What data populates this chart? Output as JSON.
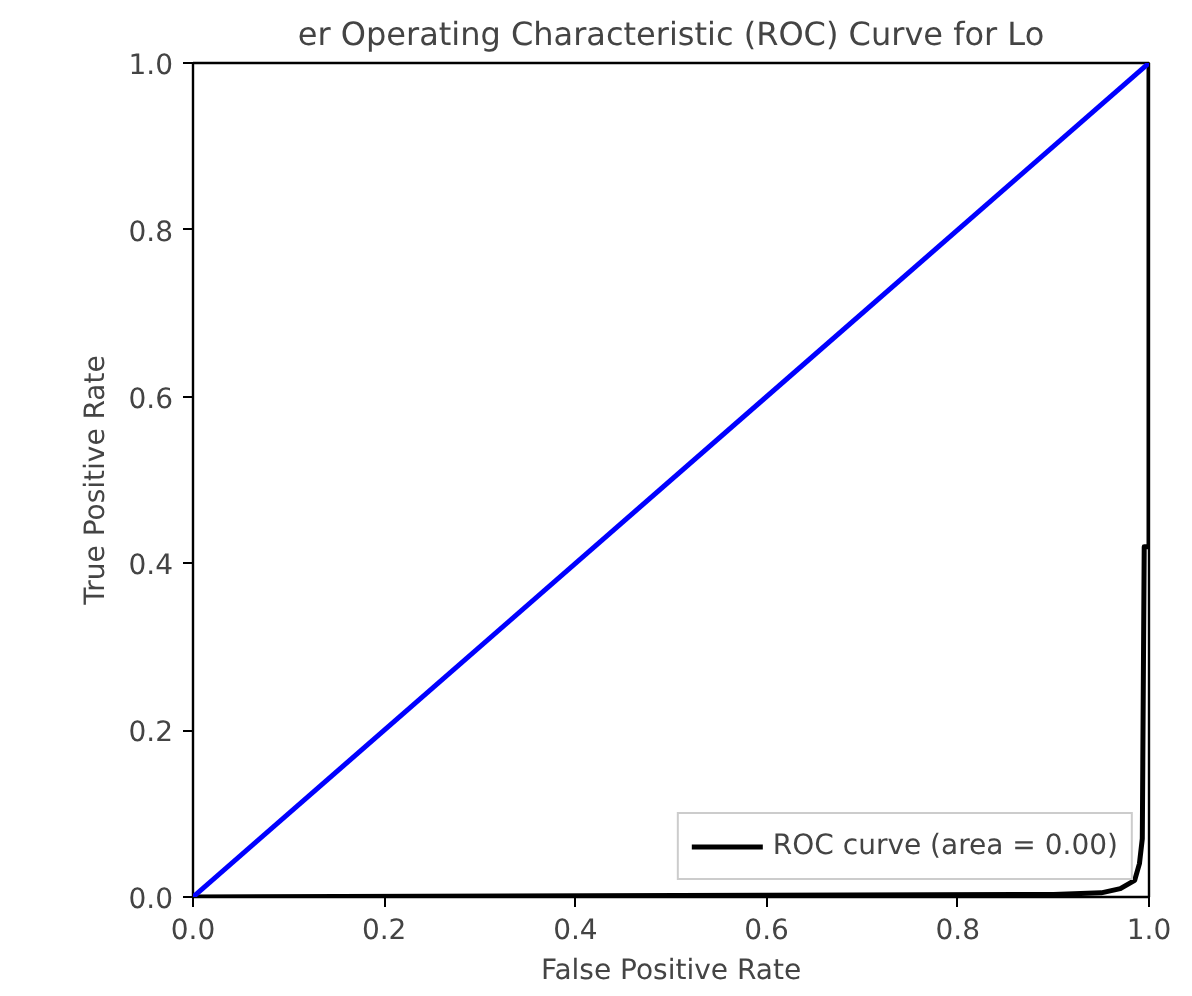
{
  "chart_data": {
    "type": "line",
    "title": "er Operating Characteristic (ROC) Curve for Lo",
    "xlabel": "False Positive Rate",
    "ylabel": "True Positive Rate",
    "xlim": [
      0.0,
      1.0
    ],
    "ylim": [
      0.0,
      1.0
    ],
    "xticks": [
      {
        "value": 0,
        "label": "0.0"
      },
      0.2,
      0.4,
      0.6,
      0.8,
      {
        "value": 1,
        "label": "1.0"
      }
    ],
    "yticks": [
      {
        "value": 0,
        "label": "0.0"
      },
      0.2,
      0.4,
      0.6,
      0.8,
      {
        "value": 1,
        "label": "1.0"
      }
    ],
    "series": [
      {
        "name": "ROC curve (area = 0.00)",
        "color": "#000000",
        "x": [
          0.0,
          0.6,
          0.9,
          0.95,
          0.97,
          0.985,
          0.99,
          0.993,
          0.995,
          1.0,
          1.0
        ],
        "values": [
          0.0,
          0.002,
          0.003,
          0.005,
          0.01,
          0.02,
          0.04,
          0.07,
          0.42,
          0.42,
          1.0
        ]
      },
      {
        "color": "#0000ff",
        "x": [
          0.0,
          1.0
        ],
        "values": [
          0.0,
          1.0
        ]
      }
    ],
    "legend": "bottom right",
    "grid": false,
    "line_style": "solid"
  }
}
